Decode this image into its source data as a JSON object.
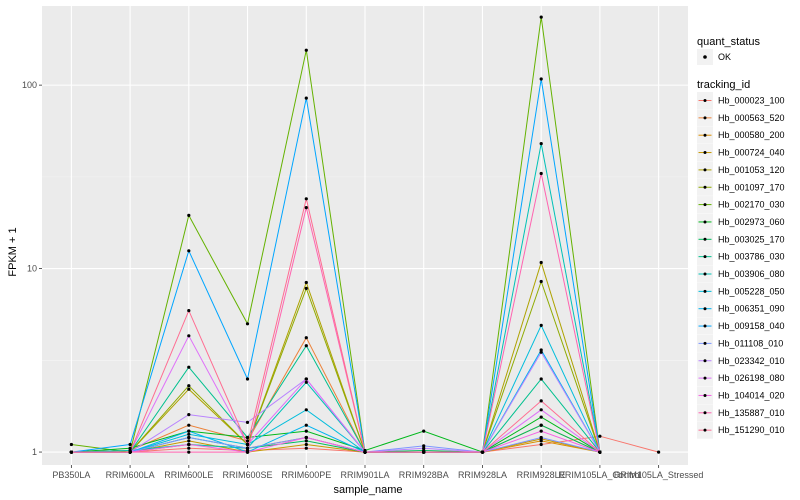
{
  "chart_data": {
    "type": "line",
    "title": "",
    "xlabel": "sample_name",
    "ylabel": "FPKM + 1",
    "y_scale": "log10",
    "ylim": [
      0.85,
      270
    ],
    "y_ticks": [
      1,
      10,
      100
    ],
    "y_tick_labels": [
      "1",
      "10",
      "100"
    ],
    "grid": true,
    "legend_position": "right",
    "categories": [
      "PB350LA",
      "RRIM600LA",
      "RRIM600LE",
      "RRIM600SE",
      "RRIM600PE",
      "RRIM901LA",
      "RRIM928BA",
      "RRIM928LA",
      "RRIM928LE",
      "RRIM105LA_Control",
      "RRIM105LA_Stressed"
    ],
    "x_tick_labels": [
      "PB350LA",
      "RRIM600LA",
      "RRIM600LE",
      "RRIM600SE",
      "RRIM600PE",
      "RRIM901LA",
      "RRIM928BA",
      "RRIM928LA",
      "RRIM928LE",
      "RRIM105LA_Control",
      "RRIM105LA_Stressed"
    ],
    "shape_legend": {
      "title": "quant_status",
      "entries": [
        "OK"
      ]
    },
    "color_legend_title": "tracking_id",
    "series": [
      {
        "name": "Hb_000023_100",
        "color": "#F8766D",
        "values": [
          1.0,
          1.0,
          1.05,
          1.02,
          1.05,
          1.0,
          1.0,
          1.0,
          1.1,
          1.22,
          1.0
        ]
      },
      {
        "name": "Hb_000563_520",
        "color": "#EC8239",
        "values": [
          1.0,
          1.02,
          1.4,
          1.15,
          4.2,
          1.0,
          1.0,
          1.0,
          1.4,
          1.0,
          null
        ]
      },
      {
        "name": "Hb_000580_200",
        "color": "#DB8E00",
        "values": [
          1.0,
          1.0,
          1.1,
          1.05,
          1.2,
          1.0,
          1.0,
          1.0,
          1.15,
          1.0,
          null
        ]
      },
      {
        "name": "Hb_000724_040",
        "color": "#C79800",
        "values": [
          1.0,
          1.0,
          1.15,
          1.0,
          1.1,
          1.0,
          1.0,
          1.0,
          1.18,
          1.0,
          null
        ]
      },
      {
        "name": "Hb_001053_120",
        "color": "#AEA200",
        "values": [
          1.0,
          1.0,
          2.2,
          1.1,
          8.4,
          1.0,
          1.0,
          1.0,
          10.8,
          1.0,
          null
        ]
      },
      {
        "name": "Hb_001097_170",
        "color": "#8FAA00",
        "values": [
          1.0,
          1.0,
          2.3,
          1.1,
          7.8,
          1.0,
          1.0,
          1.0,
          8.5,
          1.0,
          null
        ]
      },
      {
        "name": "Hb_002170_030",
        "color": "#64B200",
        "values": [
          1.1,
          1.0,
          19.5,
          5.0,
          155.0,
          1.0,
          1.0,
          1.0,
          235.0,
          1.0,
          null
        ]
      },
      {
        "name": "Hb_002973_060",
        "color": "#00B81B",
        "values": [
          1.0,
          1.05,
          1.3,
          1.2,
          1.3,
          1.02,
          1.3,
          1.0,
          1.55,
          1.0,
          null
        ]
      },
      {
        "name": "Hb_003025_170",
        "color": "#00BD5C",
        "values": [
          1.0,
          1.0,
          1.2,
          1.05,
          1.15,
          1.0,
          1.02,
          1.0,
          1.4,
          1.0,
          null
        ]
      },
      {
        "name": "Hb_003786_030",
        "color": "#00C08E",
        "values": [
          1.0,
          1.0,
          2.9,
          1.2,
          3.8,
          1.0,
          1.0,
          1.0,
          2.5,
          1.0,
          null
        ]
      },
      {
        "name": "Hb_003906_080",
        "color": "#00C1B7",
        "values": [
          1.0,
          1.02,
          1.1,
          1.05,
          2.4,
          1.0,
          1.0,
          1.0,
          48.0,
          1.0,
          null
        ]
      },
      {
        "name": "Hb_005228_050",
        "color": "#00BDDC",
        "values": [
          1.0,
          1.0,
          1.25,
          1.1,
          1.7,
          1.0,
          1.0,
          1.0,
          4.9,
          1.0,
          null
        ]
      },
      {
        "name": "Hb_006351_090",
        "color": "#00B4F0",
        "values": [
          1.0,
          1.0,
          1.3,
          1.0,
          1.4,
          1.0,
          1.0,
          1.0,
          3.6,
          1.0,
          null
        ]
      },
      {
        "name": "Hb_009158_040",
        "color": "#00A5FF",
        "values": [
          1.0,
          1.1,
          12.5,
          2.5,
          85.0,
          1.0,
          1.0,
          1.0,
          108.0,
          1.0,
          null
        ]
      },
      {
        "name": "Hb_011108_010",
        "color": "#7C96FF",
        "values": [
          1.0,
          1.0,
          1.2,
          1.05,
          1.2,
          1.0,
          1.08,
          1.0,
          1.2,
          1.0,
          null
        ]
      },
      {
        "name": "Hb_023342_010",
        "color": "#B983FF",
        "values": [
          1.0,
          1.0,
          1.6,
          1.45,
          2.5,
          1.0,
          1.05,
          1.0,
          3.5,
          1.0,
          null
        ]
      },
      {
        "name": "Hb_026198_080",
        "color": "#DF70F8",
        "values": [
          1.0,
          1.0,
          4.3,
          1.1,
          2.5,
          1.0,
          1.0,
          1.0,
          1.7,
          1.0,
          null
        ]
      },
      {
        "name": "Hb_104014_020",
        "color": "#F564E3",
        "values": [
          1.0,
          1.0,
          1.1,
          1.0,
          1.2,
          1.0,
          1.0,
          1.0,
          1.3,
          1.0,
          null
        ]
      },
      {
        "name": "Hb_135887_010",
        "color": "#FF64B0",
        "values": [
          1.0,
          1.0,
          1.0,
          1.0,
          21.5,
          1.0,
          1.0,
          1.0,
          33.0,
          1.0,
          null
        ]
      },
      {
        "name": "Hb_151290_010",
        "color": "#FF6C91",
        "values": [
          1.0,
          1.0,
          5.9,
          1.1,
          24.0,
          1.0,
          1.0,
          1.0,
          1.9,
          1.0,
          null
        ]
      }
    ]
  }
}
